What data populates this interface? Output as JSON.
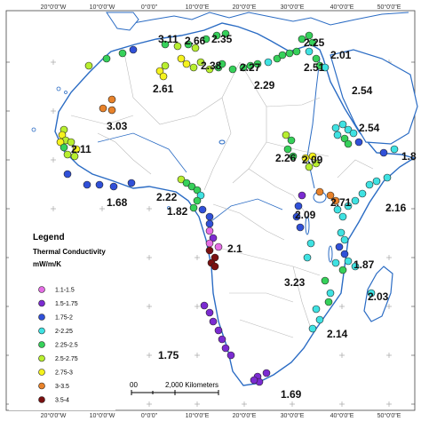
{
  "map": {
    "top_ticks": [
      "20°0'0\"W",
      "10°0'0\"W",
      "0°0'0\"",
      "10°0'0\"E",
      "20°0'0\"E",
      "30°0'0\"E",
      "40°0'0\"E",
      "50°0'0\"E"
    ],
    "bottom_ticks": [
      "20°0'0\"W",
      "10°0'0\"W",
      "0°0'0\"",
      "10°0'0\"E",
      "20°0'0\"E",
      "30°0'0\"E",
      "40°0'0\"E",
      "50°0'0\"E"
    ],
    "colors": {
      "ocean": "#ffffff",
      "land": "#ffffff",
      "coastline": "#2b6cc4",
      "borders": "#bbbbbb",
      "graticule": "#999999"
    }
  },
  "value_labels": [
    "3.11",
    "2.66",
    "2.35",
    "2.25",
    "2.61",
    "2.38",
    "2.27",
    "2.51",
    "2.01",
    "2.29",
    "2.54",
    "3.03",
    "2.54",
    "2.11",
    "2.26",
    "2.09",
    "1.8",
    "2.22",
    "1.68",
    "1.82",
    "2.71",
    "2.09",
    "2.16",
    "2.1",
    "1.87",
    "3.23",
    "2.03",
    "2.14",
    "1.75",
    "1.69"
  ],
  "legend": {
    "title": "Legend",
    "subtitle": "Thermal Conductivity",
    "unit": "mW/m/K",
    "items": [
      {
        "label": "1.1-1.5",
        "color": "#e56de5"
      },
      {
        "label": "1.5-1.75",
        "color": "#7b2bd1"
      },
      {
        "label": "1.75-2",
        "color": "#3050d8"
      },
      {
        "label": "2-2.25",
        "color": "#3fe2e2"
      },
      {
        "label": "2.25-2.5",
        "color": "#36d15a"
      },
      {
        "label": "2.5-2.75",
        "color": "#b8ef2f"
      },
      {
        "label": "2.75-3",
        "color": "#f5f21d"
      },
      {
        "label": "3-3.5",
        "color": "#e8822a"
      },
      {
        "label": "3.5-4",
        "color": "#7a1010"
      }
    ]
  },
  "scale_bar": {
    "label_left": "00",
    "label_right": "2,000 Kilometers"
  }
}
